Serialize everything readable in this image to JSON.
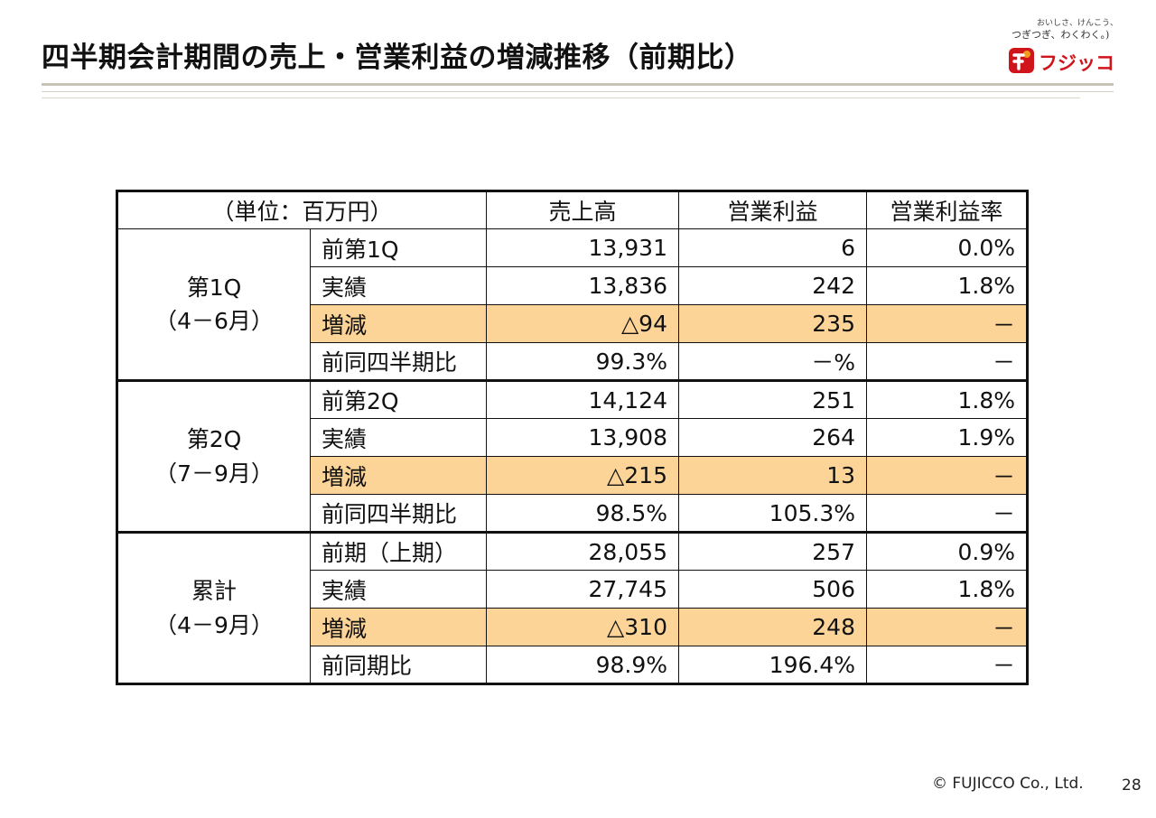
{
  "title": "四半期会計期間の売上・営業利益の増減推移（前期比）",
  "logo": {
    "tagline_small": "おいしさ、けんこう、",
    "tagline": "つぎつぎ、わくわく。)",
    "brand": "フジッコ",
    "brand_color": "#d0141b",
    "mark_icon": "fujicco-mark-icon"
  },
  "table": {
    "header": {
      "unit": "（単位：百万円）",
      "sales": "売上高",
      "op_income": "営業利益",
      "op_margin": "営業利益率"
    },
    "groups": [
      {
        "label": "第1Q",
        "period": "（4－6月）",
        "rows": [
          {
            "label": "前第1Q",
            "sales": "13,931",
            "op_income": "6",
            "op_margin": "0.0%",
            "highlight": false
          },
          {
            "label": "実績",
            "sales": "13,836",
            "op_income": "242",
            "op_margin": "1.8%",
            "highlight": false
          },
          {
            "label": "増減",
            "sales": "△94",
            "op_income": "235",
            "op_margin": "－",
            "highlight": true
          },
          {
            "label": "前同四半期比",
            "sales": "99.3%",
            "op_income": "－%",
            "op_margin": "－",
            "highlight": false
          }
        ]
      },
      {
        "label": "第2Q",
        "period": "（7－9月）",
        "rows": [
          {
            "label": "前第2Q",
            "sales": "14,124",
            "op_income": "251",
            "op_margin": "1.8%",
            "highlight": false
          },
          {
            "label": "実績",
            "sales": "13,908",
            "op_income": "264",
            "op_margin": "1.9%",
            "highlight": false
          },
          {
            "label": "増減",
            "sales": "△215",
            "op_income": "13",
            "op_margin": "－",
            "highlight": true
          },
          {
            "label": "前同四半期比",
            "sales": "98.5%",
            "op_income": "105.3%",
            "op_margin": "－",
            "highlight": false
          }
        ]
      },
      {
        "label": "累計",
        "period": "（4－9月）",
        "rows": [
          {
            "label": "前期（上期）",
            "sales": "28,055",
            "op_income": "257",
            "op_margin": "0.9%",
            "highlight": false
          },
          {
            "label": "実績",
            "sales": "27,745",
            "op_income": "506",
            "op_margin": "1.8%",
            "highlight": false
          },
          {
            "label": "増減",
            "sales": "△310",
            "op_income": "248",
            "op_margin": "－",
            "highlight": true
          },
          {
            "label": "前同期比",
            "sales": "98.9%",
            "op_income": "196.4%",
            "op_margin": "－",
            "highlight": false
          }
        ]
      }
    ],
    "highlight_color": "#fcd497"
  },
  "footer": {
    "copyright": "© FUJICCO Co., Ltd.",
    "page": "28"
  }
}
